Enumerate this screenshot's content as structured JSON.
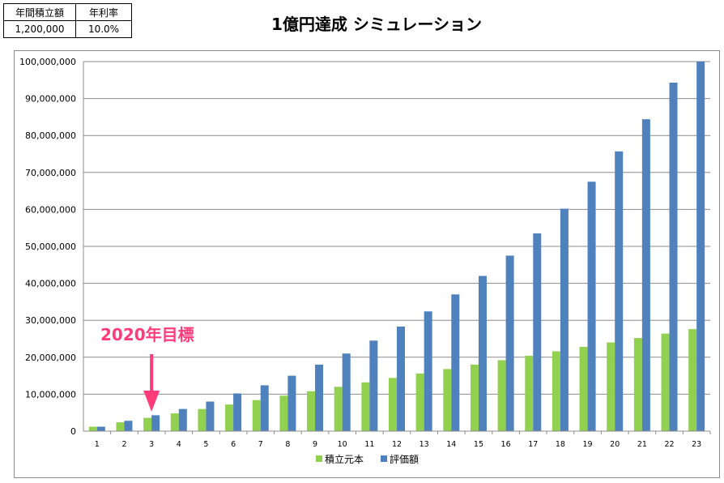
{
  "params": {
    "headers": [
      "年間積立額",
      "年利率"
    ],
    "values": [
      "1,200,000",
      "10.0%"
    ]
  },
  "colors": {
    "principal": "#92d050",
    "value": "#4f81bd",
    "annotation": "#ff3b7a"
  },
  "annotation": {
    "text": "2020年目標",
    "target_category": "3",
    "icon": "down-arrow-icon"
  },
  "chart_data": {
    "type": "bar",
    "title": "1億円達成 シミュレーション",
    "categories": [
      "1",
      "2",
      "3",
      "4",
      "5",
      "6",
      "7",
      "8",
      "9",
      "10",
      "11",
      "12",
      "13",
      "14",
      "15",
      "16",
      "17",
      "18",
      "19",
      "20",
      "21",
      "22",
      "23"
    ],
    "series": [
      {
        "name": "積立元本",
        "values": [
          1200000,
          2400000,
          3600000,
          4800000,
          6000000,
          7200000,
          8400000,
          9600000,
          10800000,
          12000000,
          13200000,
          14400000,
          15600000,
          16800000,
          18000000,
          19200000,
          20400000,
          21600000,
          22800000,
          24000000,
          25200000,
          26400000,
          27600000
        ]
      },
      {
        "name": "評価額",
        "values": [
          1200000,
          2800000,
          4300000,
          6000000,
          8000000,
          10200000,
          12400000,
          15000000,
          18000000,
          21000000,
          24500000,
          28300000,
          32400000,
          37000000,
          42000000,
          47500000,
          53500000,
          60200000,
          67500000,
          75700000,
          84400000,
          94300000,
          100000000
        ]
      }
    ],
    "ylim": [
      0,
      100000000
    ],
    "yticks": [
      "0",
      "10,000,000",
      "20,000,000",
      "30,000,000",
      "40,000,000",
      "50,000,000",
      "60,000,000",
      "70,000,000",
      "80,000,000",
      "90,000,000",
      "100,000,000"
    ],
    "xlabel": "",
    "ylabel": "",
    "grid": true,
    "legend_position": "bottom"
  }
}
